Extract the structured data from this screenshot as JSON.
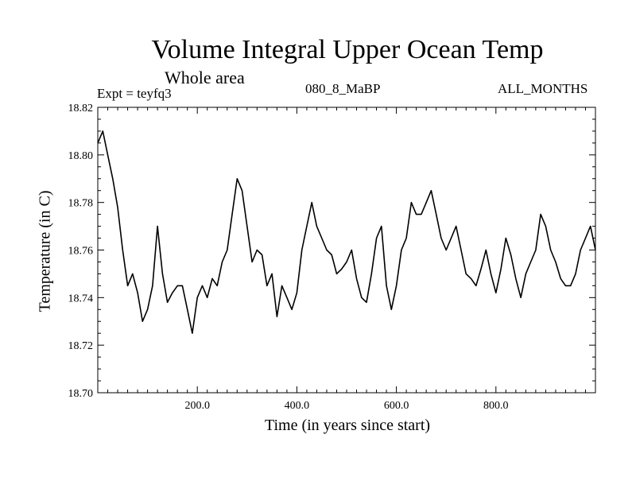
{
  "chart_data": {
    "type": "line",
    "title": "Volume Integral Upper Ocean Temp",
    "subtitle": "Whole area",
    "annotations": {
      "expt": "Expt = teyfq3",
      "run": "080_8_MaBP",
      "months": "ALL_MONTHS"
    },
    "xlabel": "Time (in years since start)",
    "ylabel": "Temperature (in C)",
    "xlim": [
      0,
      1000
    ],
    "ylim": [
      18.7,
      18.82
    ],
    "xticks": [
      200,
      400,
      600,
      800
    ],
    "xtick_labels": [
      "200.0",
      "400.0",
      "600.0",
      "800.0"
    ],
    "yticks": [
      18.7,
      18.72,
      18.74,
      18.76,
      18.78,
      18.8,
      18.82
    ],
    "ytick_labels": [
      "18.70",
      "18.72",
      "18.74",
      "18.76",
      "18.78",
      "18.80",
      "18.82"
    ],
    "series": [
      {
        "name": "Temperature",
        "color": "#000000",
        "x": [
          0,
          10,
          20,
          30,
          40,
          50,
          60,
          70,
          80,
          90,
          100,
          110,
          120,
          130,
          140,
          150,
          160,
          170,
          180,
          190,
          200,
          210,
          220,
          230,
          240,
          250,
          260,
          270,
          280,
          290,
          300,
          310,
          320,
          330,
          340,
          350,
          360,
          370,
          380,
          390,
          400,
          410,
          420,
          430,
          440,
          450,
          460,
          470,
          480,
          490,
          500,
          510,
          520,
          530,
          540,
          550,
          560,
          570,
          580,
          590,
          600,
          610,
          620,
          630,
          640,
          650,
          660,
          670,
          680,
          690,
          700,
          710,
          720,
          730,
          740,
          750,
          760,
          770,
          780,
          790,
          800,
          810,
          820,
          830,
          840,
          850,
          860,
          870,
          880,
          890,
          900,
          910,
          920,
          930,
          940,
          950,
          960,
          970,
          980,
          990,
          1000
        ],
        "y": [
          18.805,
          18.81,
          18.8,
          18.79,
          18.778,
          18.76,
          18.745,
          18.75,
          18.742,
          18.73,
          18.735,
          18.745,
          18.77,
          18.75,
          18.738,
          18.742,
          18.745,
          18.745,
          18.735,
          18.725,
          18.74,
          18.745,
          18.74,
          18.748,
          18.745,
          18.755,
          18.76,
          18.775,
          18.79,
          18.785,
          18.77,
          18.755,
          18.76,
          18.758,
          18.745,
          18.75,
          18.732,
          18.745,
          18.74,
          18.735,
          18.742,
          18.76,
          18.77,
          18.78,
          18.77,
          18.765,
          18.76,
          18.758,
          18.75,
          18.752,
          18.755,
          18.76,
          18.748,
          18.74,
          18.738,
          18.75,
          18.765,
          18.77,
          18.745,
          18.735,
          18.745,
          18.76,
          18.765,
          18.78,
          18.775,
          18.775,
          18.78,
          18.785,
          18.775,
          18.765,
          18.76,
          18.765,
          18.77,
          18.76,
          18.75,
          18.748,
          18.745,
          18.752,
          18.76,
          18.75,
          18.742,
          18.752,
          18.765,
          18.758,
          18.748,
          18.74,
          18.75,
          18.755,
          18.76,
          18.775,
          18.77,
          18.76,
          18.755,
          18.748,
          18.745,
          18.745,
          18.75,
          18.76,
          18.765,
          18.77,
          18.76
        ]
      }
    ]
  }
}
